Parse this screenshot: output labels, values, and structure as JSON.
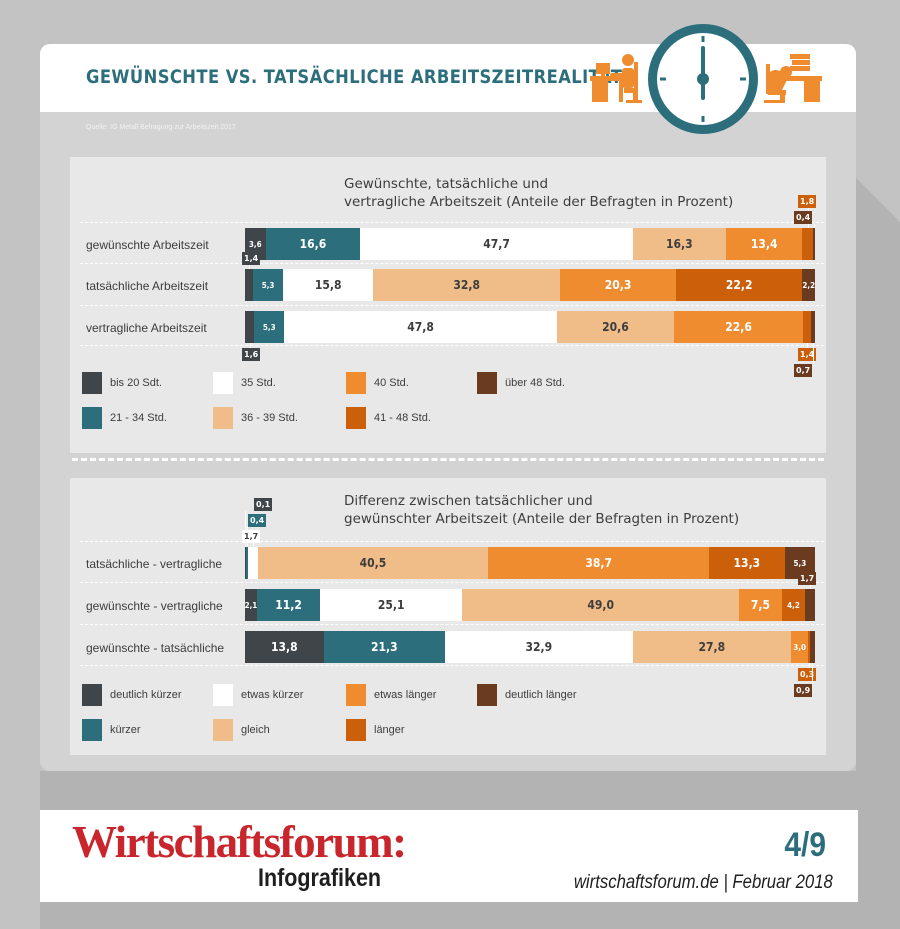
{
  "header": {
    "title": "GEWÜNSCHTE VS. TATSÄCHLICHE ARBEITSZEITREALITÄT",
    "source": "Quelle: IG Metall Befragung zur Arbeitszeit 2017"
  },
  "colors": {
    "dark_gray": "#3f4549",
    "teal": "#2c6e7c",
    "white": "#ffffff",
    "light_orange": "#f0bc88",
    "orange": "#f08c30",
    "dark_orange": "#cc5f0a",
    "brown": "#6b3b20",
    "brand_red": "#c8262c"
  },
  "icons": [
    "desk-worker-icon",
    "clock-icon",
    "tired-worker-icon"
  ],
  "chart_data": [
    {
      "type": "bar",
      "orientation": "horizontal-stacked-100",
      "title": "Gewünschte, tatsächliche und\nvertragliche Arbeitszeit (Anteile der Befragten in Prozent)",
      "categories": [
        "gewünschte Arbeitszeit",
        "tatsächliche Arbeitszeit",
        "vertragliche Arbeitszeit"
      ],
      "series": [
        {
          "name": "bis 20 Sdt.",
          "color": "#3f4549",
          "values": [
            3.6,
            1.4,
            1.6
          ]
        },
        {
          "name": "21 - 34 Std.",
          "color": "#2c6e7c",
          "values": [
            16.6,
            5.3,
            5.3
          ]
        },
        {
          "name": "35 Std.",
          "color": "#ffffff",
          "values": [
            47.7,
            15.8,
            47.8
          ]
        },
        {
          "name": "36 - 39 Std.",
          "color": "#f0bc88",
          "values": [
            16.3,
            32.8,
            20.6
          ]
        },
        {
          "name": "40 Std.",
          "color": "#f08c30",
          "values": [
            13.4,
            20.3,
            22.6
          ]
        },
        {
          "name": "41 - 48 Std.",
          "color": "#cc5f0a",
          "values": [
            1.8,
            22.2,
            1.4
          ]
        },
        {
          "name": "über 48 Std.",
          "color": "#6b3b20",
          "values": [
            0.4,
            2.2,
            0.7
          ]
        }
      ],
      "legend_columns": [
        [
          "bis 20 Sdt.",
          "21 - 34 Std."
        ],
        [
          "35 Std.",
          "36 - 39 Std."
        ],
        [
          "40 Std.",
          "41 - 48 Std."
        ],
        [
          "über 48 Std."
        ]
      ]
    },
    {
      "type": "bar",
      "orientation": "horizontal-stacked-100",
      "title": "Differenz zwischen tatsächlicher und\ngewünschter Arbeitszeit (Anteile der Befragten in Prozent)",
      "categories": [
        "tatsächliche - vertragliche",
        "gewünschte - vertragliche",
        "gewünschte - tatsächliche"
      ],
      "series": [
        {
          "name": "deutlich kürzer",
          "color": "#3f4549",
          "values": [
            0.1,
            2.1,
            13.8
          ]
        },
        {
          "name": "kürzer",
          "color": "#2c6e7c",
          "values": [
            0.4,
            11.2,
            21.3
          ]
        },
        {
          "name": "etwas kürzer",
          "color": "#ffffff",
          "values": [
            1.7,
            25.1,
            32.9
          ]
        },
        {
          "name": "gleich",
          "color": "#f0bc88",
          "values": [
            40.5,
            49.0,
            27.8
          ]
        },
        {
          "name": "etwas länger",
          "color": "#f08c30",
          "values": [
            38.7,
            7.5,
            3.0
          ]
        },
        {
          "name": "länger",
          "color": "#cc5f0a",
          "values": [
            13.3,
            4.2,
            0.3
          ]
        },
        {
          "name": "deutlich länger",
          "color": "#6b3b20",
          "values": [
            5.3,
            1.7,
            0.9
          ]
        }
      ],
      "legend_columns": [
        [
          "deutlich kürzer",
          "kürzer"
        ],
        [
          "etwas kürzer",
          "gleich"
        ],
        [
          "etwas länger",
          "länger"
        ],
        [
          "deutlich länger"
        ]
      ]
    }
  ],
  "footer": {
    "brand": "Wirtschaftsforum:",
    "subtitle": "Infografiken",
    "page": "4/9",
    "site": "wirtschaftsforum.de | Februar 2018"
  }
}
